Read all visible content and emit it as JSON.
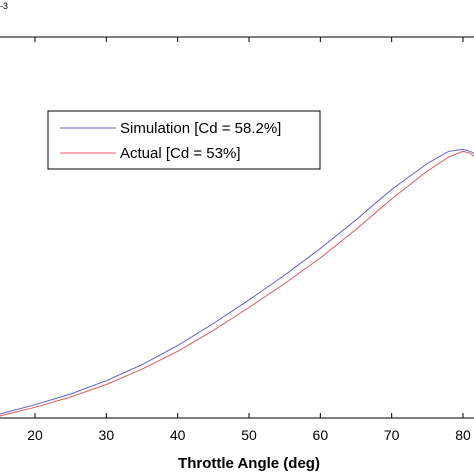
{
  "chart_data": {
    "type": "line",
    "title": "",
    "xlabel": "Throttle Angle (deg)",
    "ylabel": "",
    "exponent_label": "-3",
    "xlim": [
      15,
      82
    ],
    "ylim": [
      0,
      1
    ],
    "xticks": [
      20,
      30,
      40,
      50,
      60,
      70,
      80
    ],
    "xtick_labels": [
      "20",
      "30",
      "40",
      "50",
      "60",
      "70",
      "80"
    ],
    "grid": false,
    "legend_position": "upper-left",
    "series": [
      {
        "name": "Simulation [Cd = 58.2%]",
        "color": "#5b5bdc",
        "x": [
          15,
          20,
          25,
          30,
          35,
          40,
          45,
          50,
          55,
          60,
          65,
          70,
          75,
          78,
          80,
          81,
          82
        ],
        "y": [
          0.01,
          0.035,
          0.063,
          0.098,
          0.14,
          0.19,
          0.248,
          0.31,
          0.375,
          0.445,
          0.52,
          0.6,
          0.668,
          0.7,
          0.705,
          0.7,
          0.69
        ]
      },
      {
        "name": "Actual [Cd = 53%]",
        "color": "#e05a5a",
        "x": [
          15,
          20,
          25,
          30,
          35,
          40,
          45,
          50,
          55,
          60,
          65,
          70,
          75,
          78,
          80,
          81,
          82
        ],
        "y": [
          0.005,
          0.028,
          0.055,
          0.088,
          0.128,
          0.175,
          0.23,
          0.29,
          0.353,
          0.42,
          0.495,
          0.575,
          0.648,
          0.685,
          0.7,
          0.695,
          0.68
        ]
      }
    ]
  }
}
